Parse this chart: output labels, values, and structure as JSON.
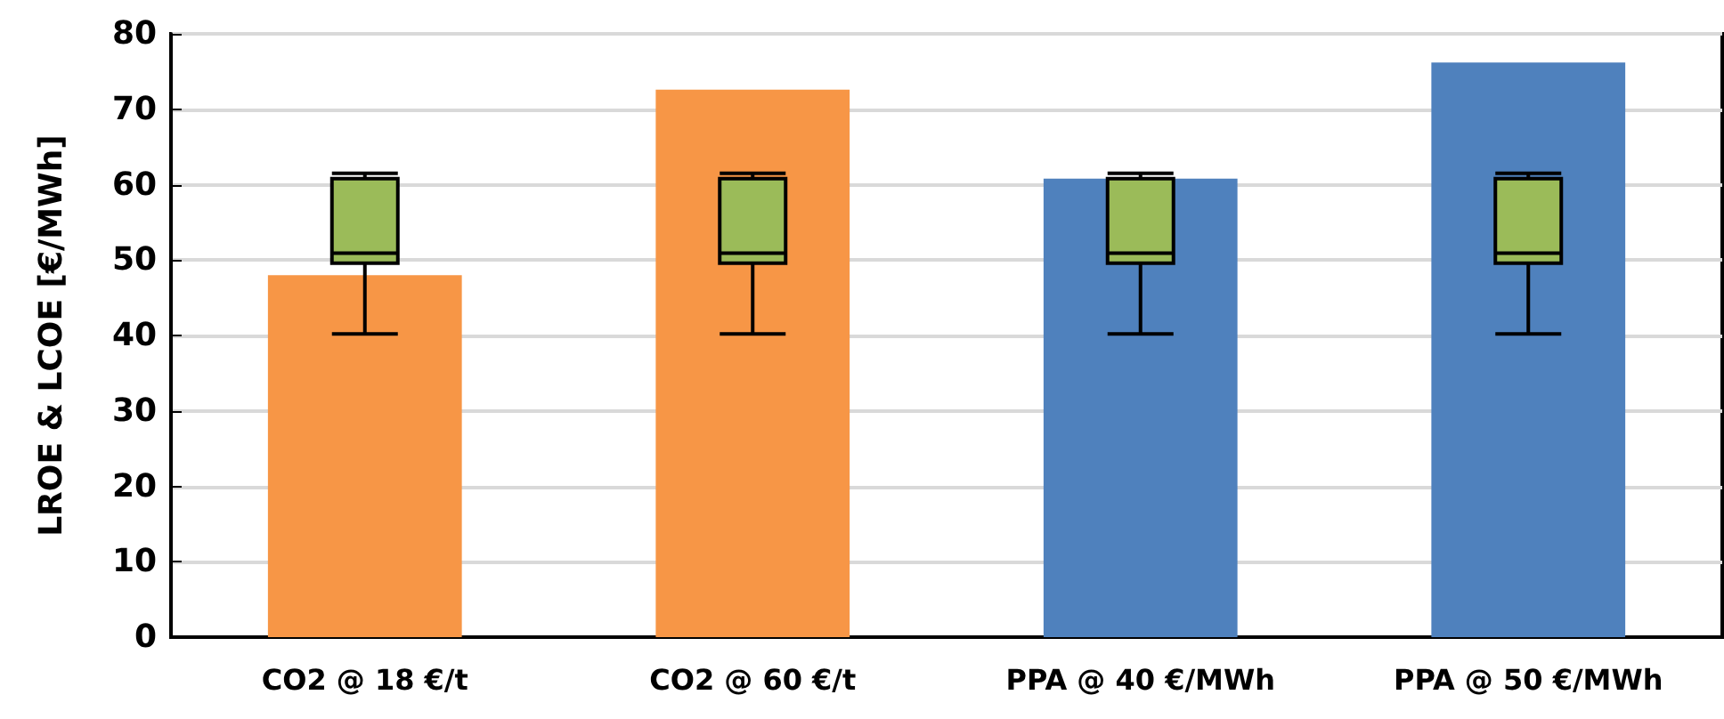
{
  "chart_data": {
    "type": "bar",
    "ylabel": "LROE & LCOE [€/MWh]",
    "categories": [
      "CO2 @ 18 €/t",
      "CO2 @ 60 €/t",
      "PPA @ 40 €/MWh",
      "PPA @ 50 €/MWh"
    ],
    "series": [
      {
        "colors": [
          "#f79646",
          "#f79646",
          "#4f81bd",
          "#4f81bd"
        ],
        "values": [
          48,
          72.6,
          60.8,
          76.2
        ]
      },
      {
        "type": "box",
        "color": "#9bbb59",
        "boxes": [
          {
            "low": 40.2,
            "q1": 49.6,
            "median": 50.9,
            "q3": 60.8,
            "high": 61.5
          },
          {
            "low": 40.2,
            "q1": 49.6,
            "median": 50.9,
            "q3": 60.8,
            "high": 61.5
          },
          {
            "low": 40.2,
            "q1": 49.6,
            "median": 50.9,
            "q3": 60.8,
            "high": 61.5
          },
          {
            "low": 40.2,
            "q1": 49.6,
            "median": 50.9,
            "q3": 60.8,
            "high": 61.5
          }
        ]
      }
    ],
    "ylim": [
      0,
      80
    ],
    "yticks": [
      0,
      10,
      20,
      30,
      40,
      50,
      60,
      70,
      80
    ],
    "grid": "y"
  }
}
